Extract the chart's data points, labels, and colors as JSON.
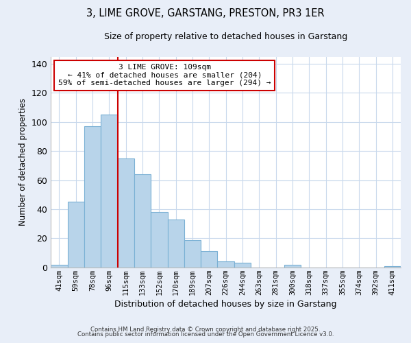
{
  "title1": "3, LIME GROVE, GARSTANG, PRESTON, PR3 1ER",
  "title2": "Size of property relative to detached houses in Garstang",
  "xlabel": "Distribution of detached houses by size in Garstang",
  "ylabel": "Number of detached properties",
  "bar_color": "#b8d4ea",
  "bar_edge_color": "#7ab0d4",
  "categories": [
    "41sqm",
    "59sqm",
    "78sqm",
    "96sqm",
    "115sqm",
    "133sqm",
    "152sqm",
    "170sqm",
    "189sqm",
    "207sqm",
    "226sqm",
    "244sqm",
    "263sqm",
    "281sqm",
    "300sqm",
    "318sqm",
    "337sqm",
    "355sqm",
    "374sqm",
    "392sqm",
    "411sqm"
  ],
  "values": [
    2,
    45,
    97,
    105,
    75,
    64,
    38,
    33,
    19,
    11,
    4,
    3,
    0,
    0,
    2,
    0,
    0,
    0,
    0,
    0,
    1
  ],
  "vline_index": 4,
  "vline_color": "#cc0000",
  "ann_title": "3 LIME GROVE: 109sqm",
  "ann_line1": "← 41% of detached houses are smaller (204)",
  "ann_line2": "59% of semi-detached houses are larger (294) →",
  "ylim": [
    0,
    145
  ],
  "yticks": [
    0,
    20,
    40,
    60,
    80,
    100,
    120,
    140
  ],
  "footnote1": "Contains HM Land Registry data © Crown copyright and database right 2025.",
  "footnote2": "Contains public sector information licensed under the Open Government Licence v3.0.",
  "bg_color": "#e8eef8",
  "plot_bg_color": "#ffffff",
  "grid_color": "#c8d8ec"
}
